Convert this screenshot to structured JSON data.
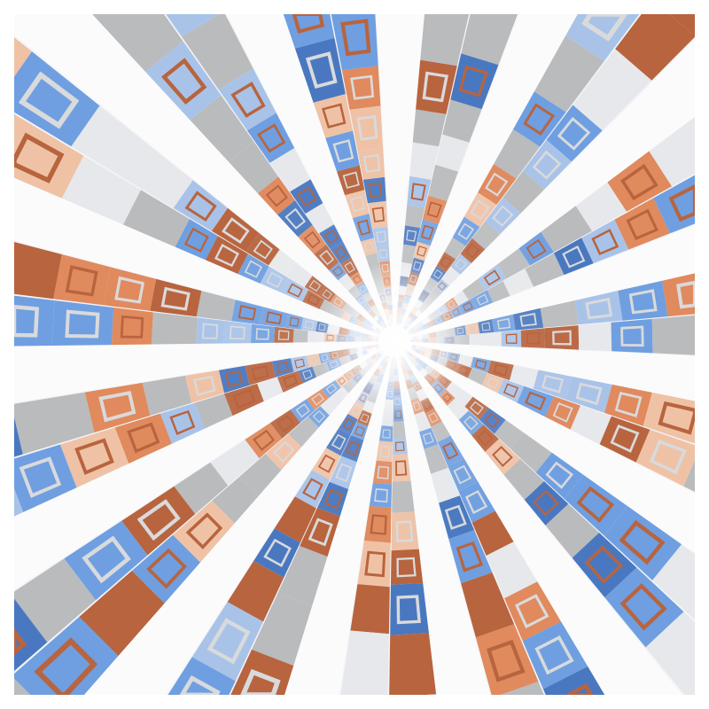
{
  "artwork": {
    "style": "radial tunnel of building facades",
    "palette": {
      "background": "#f4f5f7",
      "gap": "#fbfbfc",
      "gray": "#b9bbbd",
      "blue": "#6f9fe0",
      "blue_dark": "#4a78c0",
      "blue_light": "#a9c3e8",
      "orange": "#e08a5e",
      "orange_dark": "#b8643e",
      "orange_light": "#efc2a6",
      "white": "#e6e8eb",
      "window_frame": "#d9dadc"
    }
  }
}
